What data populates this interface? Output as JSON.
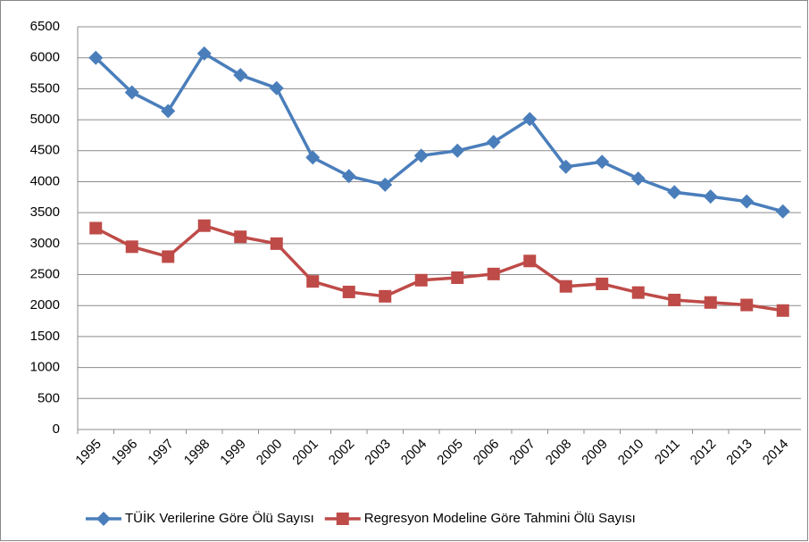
{
  "chart_data": {
    "type": "line",
    "categories": [
      "1995",
      "1996",
      "1997",
      "1998",
      "1999",
      "2000",
      "2001",
      "2002",
      "2003",
      "2004",
      "2005",
      "2006",
      "2007",
      "2008",
      "2009",
      "2010",
      "2011",
      "2012",
      "2013",
      "2014"
    ],
    "series": [
      {
        "name": "TÜİK Verilerine Göre Ölü Sayısı",
        "color": "#4a7ebb",
        "marker": "diamond",
        "values": [
          6000,
          5440,
          5140,
          6070,
          5720,
          5510,
          4390,
          4090,
          3950,
          4420,
          4500,
          4640,
          5010,
          4240,
          4320,
          4050,
          3830,
          3760,
          3680,
          3520
        ]
      },
      {
        "name": "Regresyon Modeline Göre Tahmini Ölü Sayısı",
        "color": "#be4b48",
        "marker": "square",
        "values": [
          3250,
          2950,
          2790,
          3290,
          3110,
          3000,
          2390,
          2220,
          2150,
          2410,
          2450,
          2510,
          2720,
          2310,
          2350,
          2210,
          2090,
          2050,
          2010,
          1920
        ]
      }
    ],
    "ylim": [
      0,
      6500
    ],
    "yticks": [
      0,
      500,
      1000,
      1500,
      2000,
      2500,
      3000,
      3500,
      4000,
      4500,
      5000,
      5500,
      6000,
      6500
    ],
    "grid": true,
    "legend": "bottom"
  }
}
